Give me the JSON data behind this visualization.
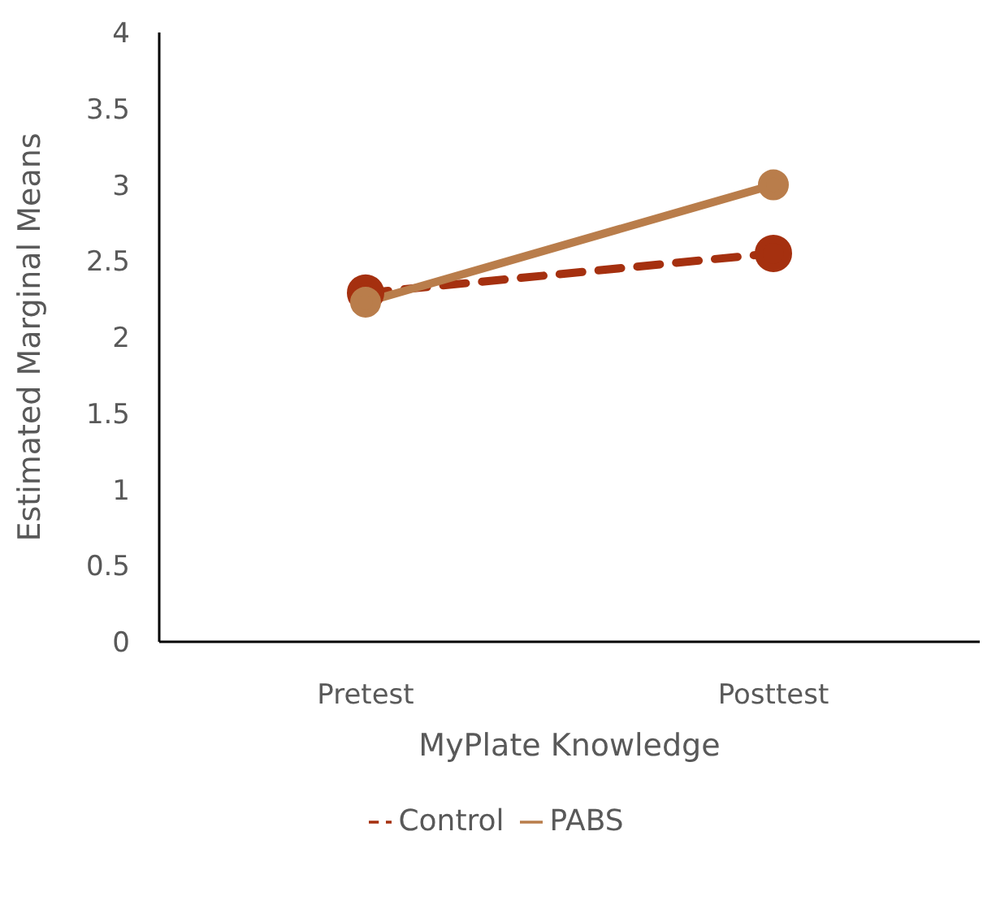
{
  "chart_data": {
    "type": "line",
    "xlabel": "MyPlate Knowledge",
    "ylabel": "Estimated Marginal Means",
    "categories": [
      "Pretest",
      "Posttest"
    ],
    "series": [
      {
        "name": "Control",
        "color": "#a5300f",
        "values": [
          2.29,
          2.55
        ],
        "line_style": "dashed"
      },
      {
        "name": "PABS",
        "color": "#b97d4b",
        "values": [
          2.23,
          3.0
        ],
        "line_style": "solid"
      }
    ],
    "ylim": [
      0,
      4
    ],
    "yticks": [
      0,
      0.5,
      1,
      1.5,
      2,
      2.5,
      3,
      3.5,
      4
    ],
    "grid": false,
    "legend": "bottom",
    "marker": "circle"
  }
}
